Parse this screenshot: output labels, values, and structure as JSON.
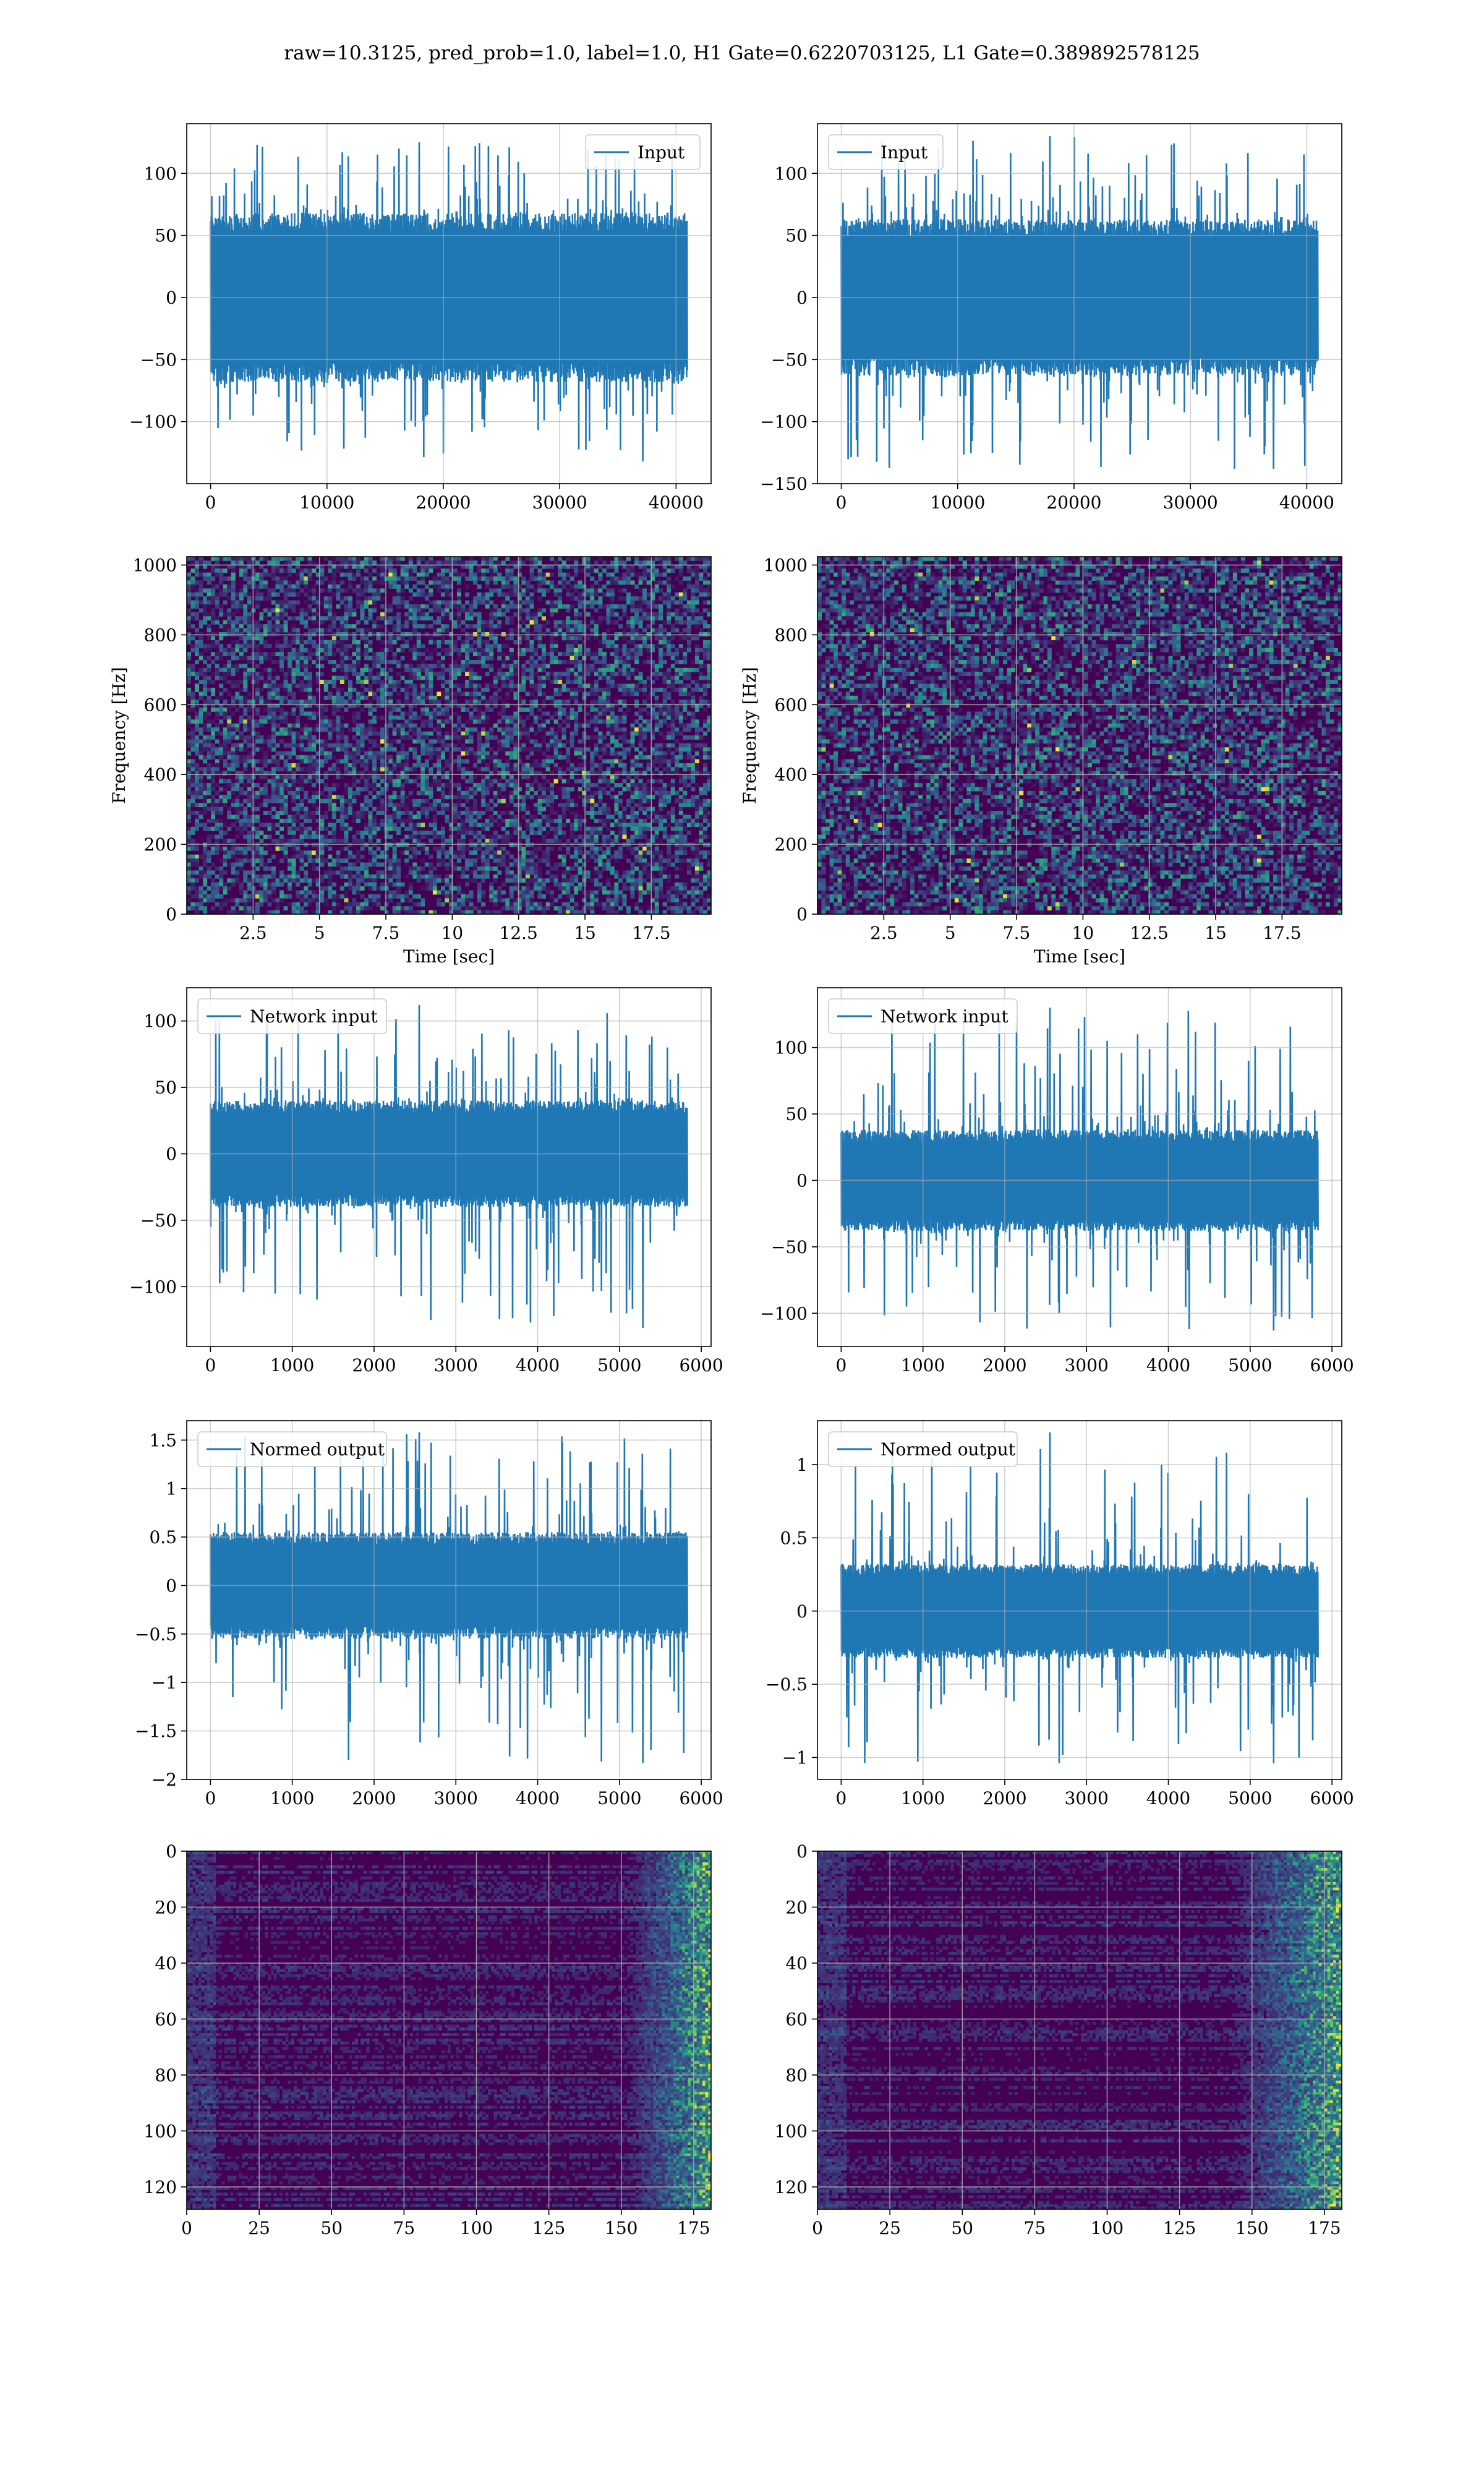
{
  "figure": {
    "title": "raw=10.3125, pred_prob=1.0, label=1.0, H1 Gate=0.6220703125, L1 Gate=0.389892578125"
  },
  "colors": {
    "line": "#1f77b4",
    "viridis_low": "#440154",
    "viridis_mid": "#21918c",
    "viridis_high": "#fde725",
    "grid": "#b0b0b0"
  },
  "chart_data": [
    {
      "id": "h1-input",
      "type": "line",
      "legend": "Input",
      "legend_loc": "upper right",
      "xlim": [
        -2048,
        43008
      ],
      "ylim": [
        -150,
        140
      ],
      "xticks": [
        0,
        10000,
        20000,
        30000,
        40000
      ],
      "yticks": [
        -100,
        -50,
        0,
        50,
        100
      ],
      "x_range": [
        0,
        40960
      ],
      "amplitude": {
        "body": 68,
        "peak_max": 125,
        "peak_min": -132
      },
      "grid": true
    },
    {
      "id": "l1-input",
      "type": "line",
      "legend": "Input",
      "legend_loc": "upper left",
      "xlim": [
        -2048,
        43008
      ],
      "ylim": [
        -150,
        140
      ],
      "xticks": [
        0,
        10000,
        20000,
        30000,
        40000
      ],
      "yticks": [
        -150,
        -100,
        -50,
        0,
        50,
        100
      ],
      "x_range": [
        0,
        40960
      ],
      "amplitude": {
        "body": 63,
        "peak_max": 130,
        "peak_min": -138
      },
      "grid": true
    },
    {
      "id": "h1-spectrogram",
      "type": "heatmap",
      "xlabel": "Time [sec]",
      "ylabel": "Frequency [Hz]",
      "xlim": [
        0,
        19.75
      ],
      "ylim": [
        0,
        1024
      ],
      "xticks": [
        2.5,
        5.0,
        7.5,
        10.0,
        12.5,
        15.0,
        17.5
      ],
      "yticks": [
        0,
        200,
        400,
        600,
        800,
        1000
      ],
      "colormap": "viridis",
      "grid": true
    },
    {
      "id": "l1-spectrogram",
      "type": "heatmap",
      "xlabel": "Time [sec]",
      "ylabel": "Frequency [Hz]",
      "xlim": [
        0,
        19.75
      ],
      "ylim": [
        0,
        1024
      ],
      "xticks": [
        2.5,
        5.0,
        7.5,
        10.0,
        12.5,
        15.0,
        17.5
      ],
      "yticks": [
        0,
        200,
        400,
        600,
        800,
        1000
      ],
      "colormap": "viridis",
      "grid": true
    },
    {
      "id": "h1-network-input",
      "type": "line",
      "legend": "Network input",
      "legend_loc": "upper left",
      "xlim": [
        -290,
        6120
      ],
      "ylim": [
        -145,
        125
      ],
      "xticks": [
        0,
        1000,
        2000,
        3000,
        4000,
        5000,
        6000
      ],
      "yticks": [
        -100,
        -50,
        0,
        50,
        100
      ],
      "x_range": [
        0,
        5830
      ],
      "amplitude": {
        "body": 40,
        "peak_max": 112,
        "peak_min": -131
      },
      "grid": true
    },
    {
      "id": "l1-network-input",
      "type": "line",
      "legend": "Network input",
      "legend_loc": "upper left",
      "xlim": [
        -290,
        6120
      ],
      "ylim": [
        -125,
        145
      ],
      "xticks": [
        0,
        1000,
        2000,
        3000,
        4000,
        5000,
        6000
      ],
      "yticks": [
        -100,
        -50,
        0,
        50,
        100
      ],
      "x_range": [
        0,
        5830
      ],
      "amplitude": {
        "body": 38,
        "peak_max": 130,
        "peak_min": -113
      },
      "grid": true
    },
    {
      "id": "h1-normed-output",
      "type": "line",
      "legend": "Normed output",
      "legend_loc": "upper left",
      "xlim": [
        -290,
        6120
      ],
      "ylim": [
        -2.0,
        1.7
      ],
      "xticks": [
        0,
        1000,
        2000,
        3000,
        4000,
        5000,
        6000
      ],
      "yticks": [
        -2.0,
        -1.5,
        -1.0,
        -0.5,
        0.0,
        0.5,
        1.0,
        1.5
      ],
      "x_range": [
        0,
        5830
      ],
      "amplitude": {
        "body": 0.55,
        "peak_max": 1.58,
        "peak_min": -1.83
      },
      "grid": true
    },
    {
      "id": "l1-normed-output",
      "type": "line",
      "legend": "Normed output",
      "legend_loc": "upper left",
      "xlim": [
        -290,
        6120
      ],
      "ylim": [
        -1.15,
        1.3
      ],
      "xticks": [
        0,
        1000,
        2000,
        3000,
        4000,
        5000,
        6000
      ],
      "yticks": [
        -1.0,
        -0.5,
        0.0,
        0.5,
        1.0
      ],
      "x_range": [
        0,
        5830
      ],
      "amplitude": {
        "body": 0.32,
        "peak_max": 1.22,
        "peak_min": -1.04
      },
      "grid": true
    },
    {
      "id": "h1-feature-map",
      "type": "heatmap",
      "xlim": [
        0,
        181
      ],
      "ylim": [
        128,
        0
      ],
      "xticks": [
        0,
        25,
        50,
        75,
        100,
        125,
        150,
        175
      ],
      "yticks": [
        0,
        20,
        40,
        60,
        80,
        100,
        120
      ],
      "colormap": "viridis",
      "active_columns": [
        150,
        181
      ],
      "grid": true
    },
    {
      "id": "l1-feature-map",
      "type": "heatmap",
      "xlim": [
        0,
        181
      ],
      "ylim": [
        128,
        0
      ],
      "xticks": [
        0,
        25,
        50,
        75,
        100,
        125,
        150,
        175
      ],
      "yticks": [
        0,
        20,
        40,
        60,
        80,
        100,
        120
      ],
      "colormap": "viridis",
      "active_columns": [
        140,
        181
      ],
      "grid": true
    }
  ]
}
